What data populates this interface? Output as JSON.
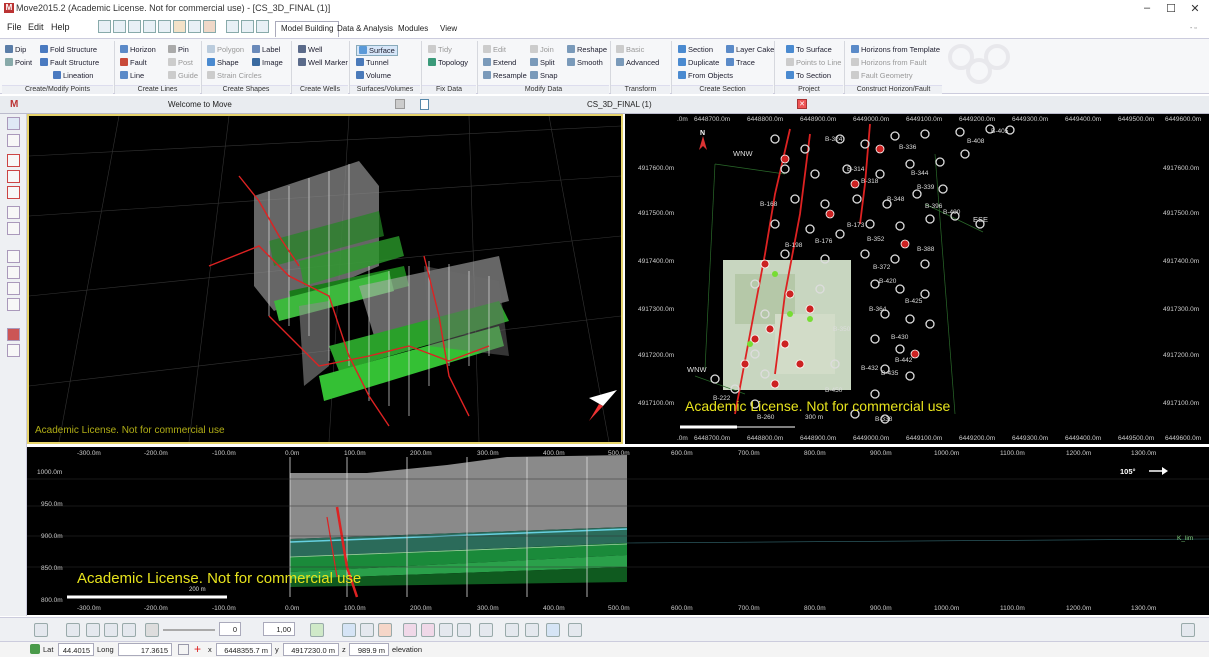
{
  "window": {
    "title": "Move2015.2 (Academic License. Not for commercial use) - [CS_3D_FINAL (1)]",
    "minimize": "–",
    "maximize": "☐",
    "close": "✕"
  },
  "menu": {
    "file": "File",
    "edit": "Edit",
    "help": "Help"
  },
  "ribbon_tabs": [
    "Model Building",
    "Data & Analysis",
    "Modules",
    "View"
  ],
  "ribbon": {
    "create_modify_points": {
      "group": "Create/Modify Points",
      "dip": "Dip",
      "point": "Point",
      "fold_structure": "Fold Structure",
      "fault_structure": "Fault Structure",
      "lineation": "Lineation"
    },
    "create_lines": {
      "group": "Create Lines",
      "horizon": "Horizon",
      "fault": "Fault",
      "line": "Line",
      "pin": "Pin",
      "post": "Post",
      "guide": "Guide"
    },
    "create_shapes": {
      "group": "Create Shapes",
      "polygon": "Polygon",
      "shape": "Shape",
      "strain_circles": "Strain Circles",
      "label": "Label",
      "image": "Image"
    },
    "create_wells": {
      "group": "Create Wells",
      "well": "Well",
      "well_marker": "Well Marker"
    },
    "surfaces_volumes": {
      "group": "Surfaces/Volumes",
      "surface": "Surface",
      "tunnel": "Tunnel",
      "volume": "Volume"
    },
    "fix_data": {
      "group": "Fix Data",
      "tidy": "Tidy",
      "topology": "Topology"
    },
    "modify_data": {
      "group": "Modify Data",
      "edit": "Edit",
      "extend": "Extend",
      "resample": "Resample",
      "join": "Join",
      "split": "Split",
      "snap": "Snap",
      "reshape": "Reshape",
      "smooth": "Smooth"
    },
    "transform": {
      "group": "Transform",
      "basic": "Basic",
      "advanced": "Advanced"
    },
    "create_section": {
      "group": "Create Section",
      "section": "Section",
      "duplicate": "Duplicate",
      "from_objects": "From Objects",
      "layer_cake": "Layer Cake",
      "trace": "Trace"
    },
    "project": {
      "group": "Project",
      "to_surface": "To Surface",
      "points_to_line": "Points to Line",
      "to_section": "To Section"
    },
    "construct_horizon_fault": {
      "group": "Construct Horizon/Fault",
      "from_template": "Horizons from Template",
      "from_fault": "Horizons from Fault",
      "fault_geometry": "Fault Geometry"
    }
  },
  "doc_tabs": {
    "welcome": "Welcome to Move",
    "cs": "CS_3D_FINAL (1)"
  },
  "watermark": "Academic License. Not for commercial use",
  "map": {
    "north": "N",
    "top_ticks": [
      ".0m",
      "6448700.0m",
      "6448800.0m",
      "6448900.0m",
      "6449000.0m",
      "6449100.0m",
      "6449200.0m",
      "6449300.0m",
      "6449400.0m",
      "6449500.0m",
      "6449600.0m"
    ],
    "y_ticks": [
      "4917600.0m",
      "4917500.0m",
      "4917400.0m",
      "4917300.0m",
      "4917200.0m",
      "4917100.0m"
    ],
    "wnw_label": "WNW",
    "ese_label": "ESE",
    "scale": "300 m",
    "well_labels": [
      "B-405",
      "B-324",
      "B-336",
      "B-408",
      "B-344",
      "B-339",
      "B-314",
      "B-318",
      "B-348",
      "B-400",
      "B-396",
      "B-173",
      "B-352",
      "B-388",
      "B-372",
      "B-420",
      "B-425",
      "B-430",
      "B-442",
      "B-435",
      "B-432",
      "B-450",
      "B-338",
      "B-260",
      "B-168",
      "B-176",
      "B-198",
      "B-222",
      "B-350",
      "B-364"
    ]
  },
  "section": {
    "top_ticks": [
      "-300.0m",
      "-200.0m",
      "-100.0m",
      "0.0m",
      "100.0m",
      "200.0m",
      "300.0m",
      "400.0m",
      "500.0m",
      "600.0m",
      "700.0m",
      "800.0m",
      "900.0m",
      "1000.0m",
      "1100.0m",
      "1200.0m",
      "1300.0m"
    ],
    "y_ticks": [
      "1000.0m",
      "950.0m",
      "900.0m",
      "850.0m",
      "800.0m"
    ],
    "azimuth": "105°",
    "horizon_label": "K_lim",
    "scale": "200 m"
  },
  "bottom_toolbar": {
    "spin_value": "0",
    "scale_value": "1,00"
  },
  "status": {
    "lat_label": "Lat",
    "lat": "44.4015",
    "long_label": "Long",
    "long": "17.3615",
    "x_label": "x",
    "x": "6448355.7 m",
    "y_label": "y",
    "y": "4917230.0 m",
    "z_label": "z",
    "z": "989.9 m",
    "mode": "elevation"
  }
}
